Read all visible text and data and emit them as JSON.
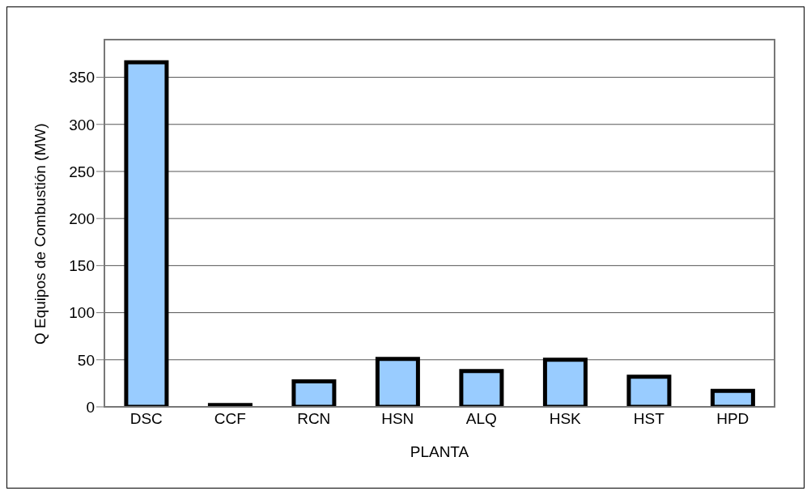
{
  "chart_data": {
    "type": "bar",
    "xlabel": "PLANTA",
    "ylabel": "Q Equipos de Combustión (MW)",
    "categories": [
      "DSC",
      "CCF",
      "RCN",
      "HSN",
      "ALQ",
      "HSK",
      "HST",
      "HPD"
    ],
    "values": [
      366,
      2,
      27,
      51,
      38,
      50,
      32,
      17
    ],
    "color": "#99ccff",
    "ylim": [
      0,
      390
    ],
    "yticks": [
      0,
      50,
      100,
      150,
      200,
      250,
      300,
      350
    ],
    "grid": "y"
  }
}
